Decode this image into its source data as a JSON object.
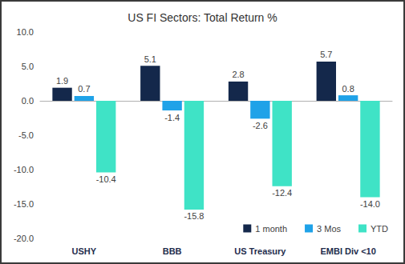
{
  "chart_data": {
    "type": "bar",
    "title": "US FI Sectors: Total Return %",
    "categories": [
      "USHY",
      "BBB",
      "US Treasury",
      "EMBI Div <10"
    ],
    "series": [
      {
        "name": "1 month",
        "color": "#14284b",
        "values": [
          1.9,
          5.1,
          2.8,
          5.7
        ],
        "value_labels": [
          "1.9",
          "5.1",
          "2.8",
          "5.7"
        ]
      },
      {
        "name": "3 Mos",
        "color": "#1fa2e8",
        "values": [
          0.7,
          -1.4,
          -2.6,
          0.8
        ],
        "value_labels": [
          "0.7",
          "-1.4",
          "-2.6",
          "0.8"
        ]
      },
      {
        "name": "YTD",
        "color": "#3fe3c6",
        "values": [
          -10.4,
          -15.8,
          -12.4,
          -14.0
        ],
        "value_labels": [
          "-10.4",
          "-15.8",
          "-12.4",
          "-14.0"
        ]
      }
    ],
    "ylim": [
      -20,
      10
    ],
    "yticks": [
      {
        "value": -20,
        "label": "-20.0"
      },
      {
        "value": -15,
        "label": "-15.0"
      },
      {
        "value": -10,
        "label": "-10.0"
      },
      {
        "value": -5,
        "label": "-5.0"
      },
      {
        "value": 0,
        "label": "0.0"
      },
      {
        "value": 5,
        "label": "5.0"
      },
      {
        "value": 10,
        "label": "10.0"
      }
    ],
    "grid": false,
    "legend": "lower right",
    "data_labels": true
  }
}
